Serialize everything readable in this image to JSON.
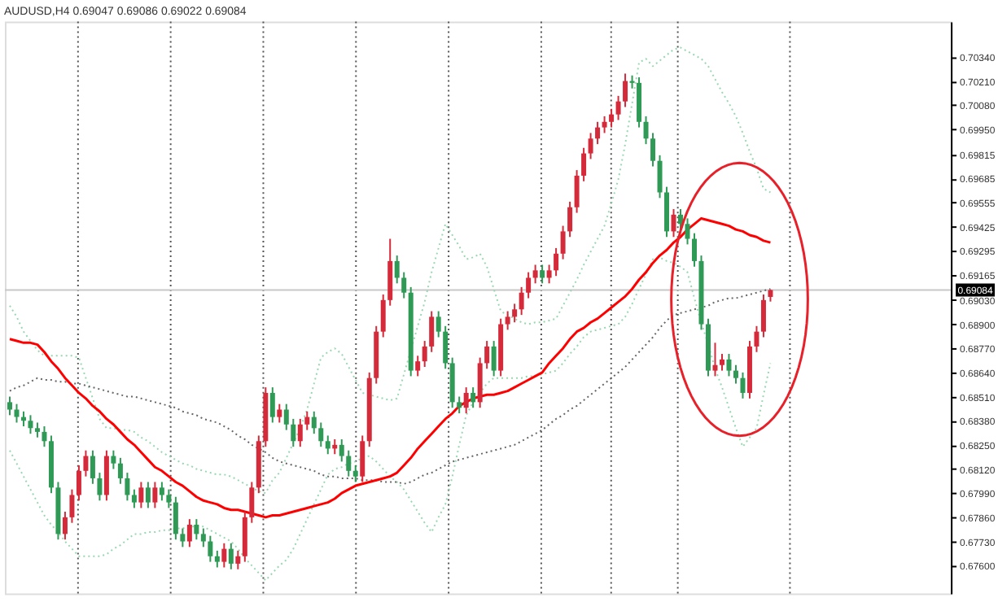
{
  "chart_data": {
    "type": "candlestick",
    "title": "AUDUSD,H4 0.69047 0.69086 0.69022 0.69084",
    "categories": [
      null,
      null,
      null,
      null,
      null,
      null,
      null,
      null,
      null,
      null,
      null,
      null,
      null,
      null,
      null,
      null,
      null,
      null,
      null,
      null,
      null,
      null,
      null,
      null,
      null,
      null,
      null,
      null,
      null,
      null,
      null,
      null,
      null,
      null,
      null,
      null,
      null,
      null,
      null,
      null,
      null,
      null,
      null,
      null,
      null,
      null,
      null,
      null,
      null,
      null,
      null,
      null,
      null,
      null,
      null,
      null,
      null,
      null,
      null,
      null,
      null,
      null,
      null,
      null,
      null,
      null,
      null,
      null,
      null,
      null,
      null,
      null,
      null,
      null,
      null,
      null,
      null,
      null,
      null,
      null,
      null,
      null,
      null,
      null,
      null,
      null,
      null,
      null,
      null,
      null,
      null,
      null,
      null,
      null,
      null,
      null,
      null,
      null,
      null,
      null,
      null,
      null,
      null,
      null,
      null,
      null,
      null,
      null,
      null,
      null,
      null
    ],
    "ohlc": [
      [
        0.6848,
        0.6851,
        0.6841,
        0.6844
      ],
      [
        0.6844,
        0.6847,
        0.6837,
        0.684
      ],
      [
        0.684,
        0.6843,
        0.6835,
        0.6838
      ],
      [
        0.6838,
        0.6841,
        0.6831,
        0.6834
      ],
      [
        0.6834,
        0.6837,
        0.6829,
        0.6832
      ],
      [
        0.6832,
        0.6835,
        0.6824,
        0.6827
      ],
      [
        0.6827,
        0.683,
        0.6799,
        0.6802
      ],
      [
        0.6802,
        0.6805,
        0.6774,
        0.6777
      ],
      [
        0.6777,
        0.6789,
        0.6774,
        0.6786
      ],
      [
        0.6786,
        0.6801,
        0.6783,
        0.6798
      ],
      [
        0.6798,
        0.6814,
        0.6795,
        0.6811
      ],
      [
        0.6811,
        0.6822,
        0.6808,
        0.6819
      ],
      [
        0.6819,
        0.6822,
        0.6804,
        0.6807
      ],
      [
        0.6807,
        0.681,
        0.6795,
        0.6798
      ],
      [
        0.6798,
        0.6822,
        0.6795,
        0.6819
      ],
      [
        0.6819,
        0.6822,
        0.6812,
        0.6815
      ],
      [
        0.6815,
        0.6818,
        0.6804,
        0.6807
      ],
      [
        0.6807,
        0.681,
        0.6795,
        0.6798
      ],
      [
        0.6798,
        0.6801,
        0.6791,
        0.6794
      ],
      [
        0.6794,
        0.6805,
        0.6791,
        0.6802
      ],
      [
        0.6802,
        0.6805,
        0.6791,
        0.6794
      ],
      [
        0.6794,
        0.6805,
        0.6791,
        0.6802
      ],
      [
        0.6802,
        0.6805,
        0.6795,
        0.6798
      ],
      [
        0.6798,
        0.6801,
        0.6791,
        0.6794
      ],
      [
        0.6794,
        0.6797,
        0.6774,
        0.6777
      ],
      [
        0.6777,
        0.678,
        0.677,
        0.6773
      ],
      [
        0.6773,
        0.6785,
        0.677,
        0.6782
      ],
      [
        0.6782,
        0.6785,
        0.6774,
        0.6777
      ],
      [
        0.6777,
        0.678,
        0.677,
        0.6773
      ],
      [
        0.6773,
        0.6776,
        0.6762,
        0.6765
      ],
      [
        0.6765,
        0.6768,
        0.6759,
        0.6762
      ],
      [
        0.6762,
        0.6772,
        0.6759,
        0.6769
      ],
      [
        0.6769,
        0.6772,
        0.6758,
        0.6761
      ],
      [
        0.6761,
        0.6768,
        0.6758,
        0.6765
      ],
      [
        0.6765,
        0.6789,
        0.6762,
        0.6786
      ],
      [
        0.6786,
        0.6805,
        0.6783,
        0.6802
      ],
      [
        0.6802,
        0.683,
        0.6799,
        0.6827
      ],
      [
        0.6827,
        0.6856,
        0.6824,
        0.6853
      ],
      [
        0.6853,
        0.6856,
        0.6837,
        0.684
      ],
      [
        0.684,
        0.6847,
        0.6837,
        0.6844
      ],
      [
        0.6844,
        0.6847,
        0.6833,
        0.6836
      ],
      [
        0.6836,
        0.6839,
        0.6824,
        0.6827
      ],
      [
        0.6827,
        0.6839,
        0.6824,
        0.6836
      ],
      [
        0.6836,
        0.6843,
        0.6833,
        0.684
      ],
      [
        0.684,
        0.6843,
        0.6831,
        0.6834
      ],
      [
        0.6834,
        0.6837,
        0.6824,
        0.6827
      ],
      [
        0.6827,
        0.683,
        0.682,
        0.6823
      ],
      [
        0.6823,
        0.6828,
        0.682,
        0.6825
      ],
      [
        0.6825,
        0.6828,
        0.6816,
        0.6819
      ],
      [
        0.6819,
        0.6822,
        0.6808,
        0.6811
      ],
      [
        0.6811,
        0.6814,
        0.6805,
        0.6808
      ],
      [
        0.6808,
        0.683,
        0.6805,
        0.6827
      ],
      [
        0.6827,
        0.6864,
        0.6824,
        0.6861
      ],
      [
        0.6861,
        0.6889,
        0.6858,
        0.6886
      ],
      [
        0.6886,
        0.6906,
        0.6883,
        0.6903
      ],
      [
        0.6903,
        0.6936,
        0.69,
        0.6924
      ],
      [
        0.6924,
        0.6927,
        0.6912,
        0.6915
      ],
      [
        0.6915,
        0.6918,
        0.6904,
        0.6907
      ],
      [
        0.6907,
        0.691,
        0.6862,
        0.6865
      ],
      [
        0.6865,
        0.6873,
        0.6862,
        0.687
      ],
      [
        0.687,
        0.6881,
        0.6867,
        0.6878
      ],
      [
        0.6878,
        0.6897,
        0.6875,
        0.6894
      ],
      [
        0.6894,
        0.6897,
        0.6883,
        0.6886
      ],
      [
        0.6886,
        0.6889,
        0.6866,
        0.6869
      ],
      [
        0.6869,
        0.6872,
        0.6845,
        0.6848
      ],
      [
        0.6848,
        0.6851,
        0.6842,
        0.6845
      ],
      [
        0.6845,
        0.6856,
        0.6842,
        0.6853
      ],
      [
        0.6853,
        0.6856,
        0.6845,
        0.6848
      ],
      [
        0.6848,
        0.6872,
        0.6845,
        0.6869
      ],
      [
        0.6869,
        0.6881,
        0.6866,
        0.6878
      ],
      [
        0.6878,
        0.6881,
        0.6862,
        0.6865
      ],
      [
        0.6865,
        0.6893,
        0.6862,
        0.689
      ],
      [
        0.689,
        0.6897,
        0.6887,
        0.6894
      ],
      [
        0.6894,
        0.6901,
        0.6891,
        0.6898
      ],
      [
        0.6898,
        0.691,
        0.6895,
        0.6907
      ],
      [
        0.6907,
        0.6918,
        0.6904,
        0.6915
      ],
      [
        0.6915,
        0.6922,
        0.6912,
        0.6919
      ],
      [
        0.6919,
        0.6922,
        0.6912,
        0.6915
      ],
      [
        0.6915,
        0.6922,
        0.6912,
        0.6919
      ],
      [
        0.6919,
        0.6931,
        0.6916,
        0.6928
      ],
      [
        0.6928,
        0.6943,
        0.6925,
        0.694
      ],
      [
        0.694,
        0.6956,
        0.6937,
        0.6953
      ],
      [
        0.6953,
        0.6973,
        0.695,
        0.697
      ],
      [
        0.697,
        0.6985,
        0.6967,
        0.6982
      ],
      [
        0.6982,
        0.6993,
        0.6979,
        0.699
      ],
      [
        0.699,
        0.6999,
        0.6987,
        0.6996
      ],
      [
        0.6996,
        0.7002,
        0.6993,
        0.6999
      ],
      [
        0.6999,
        0.7006,
        0.6996,
        0.7003
      ],
      [
        0.7003,
        0.7013,
        0.7,
        0.701
      ],
      [
        0.701,
        0.7025,
        0.7007,
        0.7021
      ],
      [
        0.7021,
        0.7024,
        0.7017,
        0.702
      ],
      [
        0.702,
        0.7023,
        0.6996,
        0.6999
      ],
      [
        0.6999,
        0.7002,
        0.6987,
        0.699
      ],
      [
        0.699,
        0.6993,
        0.6975,
        0.6978
      ],
      [
        0.6978,
        0.6981,
        0.6958,
        0.6961
      ],
      [
        0.6961,
        0.6964,
        0.6937,
        0.694
      ],
      [
        0.694,
        0.6952,
        0.6937,
        0.6949
      ],
      [
        0.6949,
        0.6952,
        0.6941,
        0.6944
      ],
      [
        0.6944,
        0.6947,
        0.6933,
        0.6936
      ],
      [
        0.6936,
        0.6939,
        0.6921,
        0.6924
      ],
      [
        0.6924,
        0.6927,
        0.6887,
        0.689
      ],
      [
        0.689,
        0.6893,
        0.6862,
        0.6865
      ],
      [
        0.6865,
        0.688,
        0.6862,
        0.6868
      ],
      [
        0.6868,
        0.6874,
        0.6865,
        0.6871
      ],
      [
        0.6871,
        0.6874,
        0.6862,
        0.6865
      ],
      [
        0.6865,
        0.6868,
        0.6858,
        0.6861
      ],
      [
        0.6861,
        0.6864,
        0.685,
        0.6853
      ],
      [
        0.6853,
        0.6881,
        0.685,
        0.6878
      ],
      [
        0.6878,
        0.6889,
        0.6875,
        0.6886
      ],
      [
        0.6886,
        0.6906,
        0.6883,
        0.6903
      ],
      [
        0.69047,
        0.69086,
        0.69022,
        0.69084
      ]
    ],
    "colors": [
      "#2e9a55",
      "#2e9a55",
      "#2e9a55",
      "#2e9a55",
      "#2e9a55",
      "#2e9a55",
      "#2e9a55",
      "#2e9a55",
      "#d42a3a",
      "#d42a3a",
      "#d42a3a",
      "#d42a3a",
      "#2e9a55",
      "#2e9a55",
      "#d42a3a",
      "#2e9a55",
      "#2e9a55",
      "#2e9a55",
      "#2e9a55",
      "#d42a3a",
      "#2e9a55",
      "#d42a3a",
      "#2e9a55",
      "#2e9a55",
      "#2e9a55",
      "#2e9a55",
      "#d42a3a",
      "#2e9a55",
      "#2e9a55",
      "#2e9a55",
      "#2e9a55",
      "#d42a3a",
      "#2e9a55",
      "#d42a3a",
      "#d42a3a",
      "#d42a3a",
      "#d42a3a",
      "#d42a3a",
      "#2e9a55",
      "#d42a3a",
      "#2e9a55",
      "#2e9a55",
      "#d42a3a",
      "#d42a3a",
      "#2e9a55",
      "#2e9a55",
      "#2e9a55",
      "#d42a3a",
      "#2e9a55",
      "#2e9a55",
      "#2e9a55",
      "#d42a3a",
      "#d42a3a",
      "#d42a3a",
      "#d42a3a",
      "#d42a3a",
      "#2e9a55",
      "#2e9a55",
      "#2e9a55",
      "#d42a3a",
      "#d42a3a",
      "#d42a3a",
      "#2e9a55",
      "#2e9a55",
      "#2e9a55",
      "#2e9a55",
      "#d42a3a",
      "#2e9a55",
      "#d42a3a",
      "#d42a3a",
      "#2e9a55",
      "#d42a3a",
      "#d42a3a",
      "#d42a3a",
      "#d42a3a",
      "#d42a3a",
      "#d42a3a",
      "#2e9a55",
      "#d42a3a",
      "#d42a3a",
      "#d42a3a",
      "#d42a3a",
      "#d42a3a",
      "#d42a3a",
      "#d42a3a",
      "#d42a3a",
      "#d42a3a",
      "#d42a3a",
      "#d42a3a",
      "#d42a3a",
      "#2e9a55",
      "#2e9a55",
      "#2e9a55",
      "#2e9a55",
      "#2e9a55",
      "#2e9a55",
      "#d42a3a",
      "#2e9a55",
      "#2e9a55",
      "#2e9a55",
      "#2e9a55",
      "#2e9a55",
      "#d42a3a",
      "#d42a3a",
      "#2e9a55",
      "#2e9a55",
      "#2e9a55",
      "#d42a3a",
      "#d42a3a",
      "#d42a3a",
      "#d42a3a"
    ],
    "series": [
      {
        "type": "line",
        "color": "#98d8b0",
        "line_style": "dotted",
        "values": [
          0.69,
          0.6894,
          0.6886,
          0.6881,
          0.6876,
          0.6873,
          0.6873,
          0.6873,
          0.6873,
          0.6873,
          0.6872,
          0.6861,
          0.685,
          0.6839,
          0.6834,
          0.6834,
          0.6833,
          0.6833,
          0.6832,
          0.6829,
          0.6827,
          0.6824,
          0.6821,
          0.6819,
          0.6817,
          0.6815,
          0.6814,
          0.6812,
          0.6811,
          0.681,
          0.6809,
          0.6809,
          0.6808,
          0.6806,
          0.6804,
          0.6802,
          0.68,
          0.6799,
          0.6806,
          0.681,
          0.6818,
          0.6826,
          0.6834,
          0.6844,
          0.6858,
          0.6872,
          0.6875,
          0.6877,
          0.6874,
          0.6867,
          0.686,
          0.6853,
          0.6852,
          0.6851,
          0.685,
          0.6849,
          0.685,
          0.6863,
          0.6876,
          0.6889,
          0.6902,
          0.6918,
          0.6931,
          0.6944,
          0.6938,
          0.6932,
          0.6925,
          0.6926,
          0.6928,
          0.6921,
          0.6909,
          0.6897,
          0.6895,
          0.6893,
          0.6891,
          0.689,
          0.6891,
          0.6891,
          0.6892,
          0.6893,
          0.69,
          0.6907,
          0.6914,
          0.6922,
          0.6929,
          0.6936,
          0.6943,
          0.6955,
          0.6968,
          0.6987,
          0.7009,
          0.7031,
          0.7033,
          0.7029,
          0.7032,
          0.7035,
          0.7038,
          0.7039,
          0.7037,
          0.7035,
          0.7033,
          0.7029,
          0.7022,
          0.7015,
          0.7009,
          0.7002,
          0.6993,
          0.6983,
          0.6974,
          0.6963,
          0.6961
        ]
      },
      {
        "type": "line",
        "color": "#98d8b0",
        "line_style": "dotted",
        "values": [
          0.6822,
          0.6815,
          0.6808,
          0.6801,
          0.6794,
          0.6787,
          0.6782,
          0.6778,
          0.6773,
          0.6769,
          0.6765,
          0.6765,
          0.6765,
          0.6765,
          0.6766,
          0.6769,
          0.6771,
          0.6774,
          0.6777,
          0.6777,
          0.6778,
          0.6778,
          0.6779,
          0.6779,
          0.678,
          0.678,
          0.6781,
          0.6781,
          0.6781,
          0.6779,
          0.6777,
          0.6775,
          0.6773,
          0.6769,
          0.6764,
          0.676,
          0.6756,
          0.6752,
          0.6756,
          0.676,
          0.6763,
          0.6769,
          0.6777,
          0.6785,
          0.6793,
          0.6801,
          0.6809,
          0.6812,
          0.6813,
          0.6815,
          0.6816,
          0.6818,
          0.6819,
          0.6816,
          0.6812,
          0.6808,
          0.6805,
          0.6801,
          0.6795,
          0.6789,
          0.6783,
          0.6778,
          0.6786,
          0.6793,
          0.6808,
          0.6825,
          0.6841,
          0.6848,
          0.6853,
          0.6858,
          0.6861,
          0.6861,
          0.6861,
          0.6861,
          0.6861,
          0.6862,
          0.6862,
          0.6863,
          0.6864,
          0.6865,
          0.6869,
          0.6874,
          0.6878,
          0.6883,
          0.6886,
          0.6887,
          0.6888,
          0.6889,
          0.689,
          0.6894,
          0.6901,
          0.6909,
          0.6917,
          0.6925,
          0.6926,
          0.6924,
          0.6923,
          0.6921,
          0.6918,
          0.6904,
          0.6891,
          0.6879,
          0.6866,
          0.6856,
          0.6845,
          0.6834,
          0.6824,
          0.6829,
          0.6834,
          0.6852,
          0.6869
        ]
      },
      {
        "type": "line",
        "color": "#666666",
        "line_style": "dotted",
        "values": [
          0.6854,
          0.6856,
          0.6857,
          0.6859,
          0.6861,
          0.686,
          0.686,
          0.6859,
          0.6859,
          0.6858,
          0.6858,
          0.6857,
          0.6856,
          0.6855,
          0.6854,
          0.6853,
          0.6852,
          0.6851,
          0.6851,
          0.685,
          0.6849,
          0.6848,
          0.6847,
          0.6846,
          0.6845,
          0.6843,
          0.6842,
          0.6841,
          0.6839,
          0.6838,
          0.6837,
          0.6835,
          0.6833,
          0.683,
          0.6828,
          0.6825,
          0.6823,
          0.6821,
          0.6818,
          0.6816,
          0.6815,
          0.6814,
          0.6813,
          0.6812,
          0.6811,
          0.6809,
          0.6808,
          0.6808,
          0.6807,
          0.6807,
          0.6807,
          0.6806,
          0.6806,
          0.6806,
          0.6805,
          0.6805,
          0.6805,
          0.6804,
          0.6805,
          0.6807,
          0.6809,
          0.681,
          0.6812,
          0.6814,
          0.6816,
          0.6817,
          0.6818,
          0.6819,
          0.682,
          0.6821,
          0.6822,
          0.6823,
          0.6824,
          0.6825,
          0.6827,
          0.6829,
          0.6831,
          0.6833,
          0.6836,
          0.6839,
          0.6841,
          0.6844,
          0.6846,
          0.6849,
          0.6852,
          0.6855,
          0.6858,
          0.6861,
          0.6864,
          0.6867,
          0.6871,
          0.6875,
          0.6879,
          0.6883,
          0.6888,
          0.6892,
          0.6895,
          0.6896,
          0.6897,
          0.6898,
          0.6899,
          0.69,
          0.6902,
          0.6903,
          0.6904,
          0.6904,
          0.6905,
          0.6906,
          0.6907,
          0.6908,
          0.6909
        ]
      },
      {
        "type": "line",
        "color": "#ff0000",
        "line_style": "solid",
        "values": [
          0.6882,
          0.6881,
          0.688,
          0.688,
          0.6879,
          0.6875,
          0.687,
          0.6866,
          0.6861,
          0.6857,
          0.6853,
          0.685,
          0.6846,
          0.6843,
          0.6839,
          0.6836,
          0.6832,
          0.6828,
          0.6825,
          0.6821,
          0.6817,
          0.6813,
          0.6811,
          0.6808,
          0.6805,
          0.6803,
          0.68,
          0.6797,
          0.6795,
          0.6794,
          0.6793,
          0.6791,
          0.679,
          0.679,
          0.6789,
          0.6788,
          0.6787,
          0.6786,
          0.6787,
          0.6787,
          0.6788,
          0.6789,
          0.679,
          0.6791,
          0.6792,
          0.6793,
          0.6794,
          0.6796,
          0.6799,
          0.6801,
          0.6803,
          0.6804,
          0.6805,
          0.6806,
          0.6807,
          0.6808,
          0.681,
          0.6814,
          0.6818,
          0.6823,
          0.6827,
          0.6831,
          0.6835,
          0.6839,
          0.6842,
          0.6846,
          0.6848,
          0.685,
          0.6851,
          0.6852,
          0.6852,
          0.6853,
          0.6854,
          0.6856,
          0.6858,
          0.686,
          0.6862,
          0.6864,
          0.6869,
          0.6873,
          0.6877,
          0.6882,
          0.6886,
          0.6888,
          0.6891,
          0.6893,
          0.6896,
          0.6899,
          0.6902,
          0.6905,
          0.6909,
          0.6914,
          0.6918,
          0.6923,
          0.6927,
          0.693,
          0.6934,
          0.6937,
          0.6941,
          0.6944,
          0.6947,
          0.6946,
          0.6945,
          0.6944,
          0.6943,
          0.6941,
          0.694,
          0.6938,
          0.6937,
          0.6935,
          0.6934
        ]
      }
    ],
    "ylim": [
      0.6745,
      0.7053
    ],
    "yticks": [
      {
        "value": 0.7034,
        "label": "0.70340"
      },
      {
        "value": 0.7021,
        "label": "0.70210"
      },
      {
        "value": 0.7008,
        "label": "0.70080"
      },
      {
        "value": 0.6995,
        "label": "0.69950"
      },
      0.69815,
      0.69685,
      0.69555,
      0.69425,
      0.69295,
      0.69165,
      {
        "value": 0.6903,
        "label": "0.69030"
      },
      {
        "value": 0.689,
        "label": "0.68900"
      },
      {
        "value": 0.6877,
        "label": "0.68770"
      },
      {
        "value": 0.6864,
        "label": "0.68640"
      },
      {
        "value": 0.6851,
        "label": "0.68510"
      },
      {
        "value": 0.6838,
        "label": "0.68380"
      },
      {
        "value": 0.6825,
        "label": "0.68250"
      },
      {
        "value": 0.6812,
        "label": "0.68120"
      },
      {
        "value": 0.6799,
        "label": "0.67990"
      },
      {
        "value": 0.6786,
        "label": "0.67860"
      },
      {
        "value": 0.6773,
        "label": "0.67730"
      },
      {
        "value": 0.676,
        "label": "0.67600"
      }
    ],
    "ref_lines": [
      {
        "axis": "y",
        "value": 0.69084,
        "label": "0.69084",
        "color": "#c8c8c8",
        "line_style": "solid"
      }
    ],
    "tick_labels": "y",
    "grid": false
  }
}
